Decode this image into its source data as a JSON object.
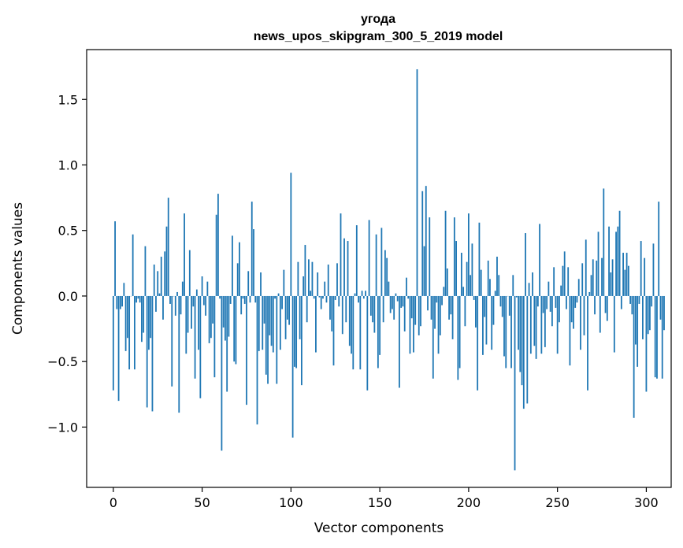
{
  "chart_data": {
    "type": "bar",
    "title": "угода",
    "subtitle": "news_upos_skipgram_300_5_2019 model",
    "xlabel": "Vector components",
    "ylabel": "Components values",
    "xlim": [
      -15,
      314
    ],
    "ylim": [
      -1.46,
      1.88
    ],
    "xticks": [
      0,
      50,
      100,
      150,
      200,
      250,
      300
    ],
    "yticks": [
      -1.0,
      -0.5,
      0.0,
      0.5,
      1.0,
      1.5
    ],
    "ytick_labels": [
      "−1.0",
      "−0.5",
      "0.0",
      "0.5",
      "1.0",
      "1.5"
    ],
    "bar_color": "#1f77b4",
    "grid": false,
    "values": [
      -0.72,
      0.57,
      -0.1,
      -0.8,
      -0.1,
      -0.08,
      0.1,
      -0.42,
      -0.32,
      -0.56,
      0.0,
      0.47,
      -0.56,
      -0.05,
      -0.02,
      -0.05,
      -0.35,
      -0.28,
      0.38,
      -0.85,
      -0.41,
      -0.32,
      -0.88,
      0.24,
      -0.12,
      0.19,
      0.02,
      0.3,
      -0.18,
      0.34,
      0.53,
      0.75,
      -0.06,
      -0.69,
      0.0,
      -0.15,
      0.03,
      -0.89,
      -0.14,
      0.11,
      0.63,
      -0.44,
      -0.28,
      0.35,
      -0.25,
      -0.08,
      -0.63,
      0.05,
      -0.41,
      -0.78,
      0.15,
      -0.07,
      -0.15,
      0.11,
      -0.36,
      -0.32,
      -0.21,
      -0.62,
      0.62,
      0.78,
      -0.02,
      -1.18,
      -0.24,
      -0.34,
      -0.73,
      -0.31,
      -0.06,
      0.46,
      -0.5,
      -0.52,
      0.25,
      0.41,
      -0.14,
      -0.02,
      -0.06,
      -0.83,
      0.19,
      -0.05,
      0.72,
      0.51,
      -0.05,
      -0.98,
      -0.42,
      0.18,
      -0.41,
      -0.21,
      -0.6,
      -0.67,
      -0.3,
      -0.38,
      -0.43,
      -0.02,
      -0.67,
      0.02,
      -0.41,
      -0.1,
      0.2,
      -0.33,
      -0.18,
      -0.22,
      0.94,
      -1.08,
      -0.54,
      -0.55,
      0.26,
      -0.33,
      -0.68,
      0.15,
      0.39,
      -0.2,
      0.28,
      0.04,
      0.26,
      -0.02,
      -0.43,
      0.18,
      -0.01,
      -0.1,
      -0.02,
      0.11,
      -0.05,
      0.24,
      -0.18,
      -0.27,
      -0.53,
      -0.03,
      0.25,
      -0.08,
      0.63,
      -0.29,
      0.44,
      -0.2,
      0.42,
      -0.38,
      -0.44,
      -0.56,
      0.02,
      0.54,
      -0.05,
      -0.56,
      0.04,
      -0.02,
      0.04,
      -0.72,
      0.58,
      -0.15,
      -0.2,
      -0.28,
      0.47,
      -0.55,
      -0.45,
      0.52,
      -0.2,
      0.35,
      0.29,
      0.11,
      -0.13,
      -0.1,
      -0.18,
      0.02,
      -0.04,
      -0.7,
      -0.09,
      -0.08,
      -0.27,
      0.14,
      -0.02,
      -0.44,
      -0.17,
      -0.43,
      -0.22,
      1.73,
      -0.3,
      -0.23,
      0.8,
      0.38,
      0.84,
      -0.11,
      0.6,
      -0.18,
      -0.63,
      -0.25,
      -0.05,
      -0.44,
      -0.3,
      -0.07,
      0.07,
      0.65,
      0.21,
      -0.18,
      -0.14,
      -0.33,
      0.6,
      0.42,
      -0.64,
      -0.55,
      0.33,
      0.07,
      -0.23,
      0.26,
      0.63,
      0.16,
      0.4,
      -0.03,
      -0.24,
      -0.72,
      0.56,
      0.2,
      -0.45,
      -0.16,
      -0.37,
      0.27,
      0.13,
      -0.41,
      -0.22,
      0.04,
      0.3,
      0.16,
      -0.08,
      -0.16,
      -0.46,
      -0.55,
      0.0,
      -0.15,
      -0.55,
      0.16,
      -1.33,
      -0.01,
      -0.41,
      -0.58,
      -0.68,
      -0.86,
      0.48,
      -0.82,
      0.1,
      -0.44,
      0.18,
      -0.38,
      -0.48,
      -0.08,
      0.55,
      -0.44,
      -0.13,
      -0.39,
      -0.1,
      0.11,
      -0.12,
      -0.23,
      0.22,
      -0.09,
      -0.44,
      -0.2,
      0.08,
      0.23,
      0.34,
      -0.1,
      0.22,
      -0.53,
      -0.2,
      -0.25,
      -0.09,
      -0.05,
      0.13,
      -0.41,
      0.25,
      -0.3,
      0.43,
      -0.72,
      0.03,
      0.16,
      0.28,
      -0.14,
      0.27,
      0.49,
      -0.28,
      0.29,
      0.82,
      -0.13,
      -0.19,
      0.53,
      0.18,
      0.28,
      -0.43,
      0.49,
      0.53,
      0.65,
      -0.1,
      0.33,
      0.2,
      0.33,
      0.23,
      -0.06,
      -0.14,
      -0.93,
      -0.37,
      -0.54,
      -0.06,
      0.42,
      -0.33,
      0.29,
      -0.73,
      -0.29,
      -0.26,
      -0.08,
      0.4,
      -0.62,
      -0.63,
      0.72,
      -0.18,
      -0.63,
      -0.26
    ]
  }
}
